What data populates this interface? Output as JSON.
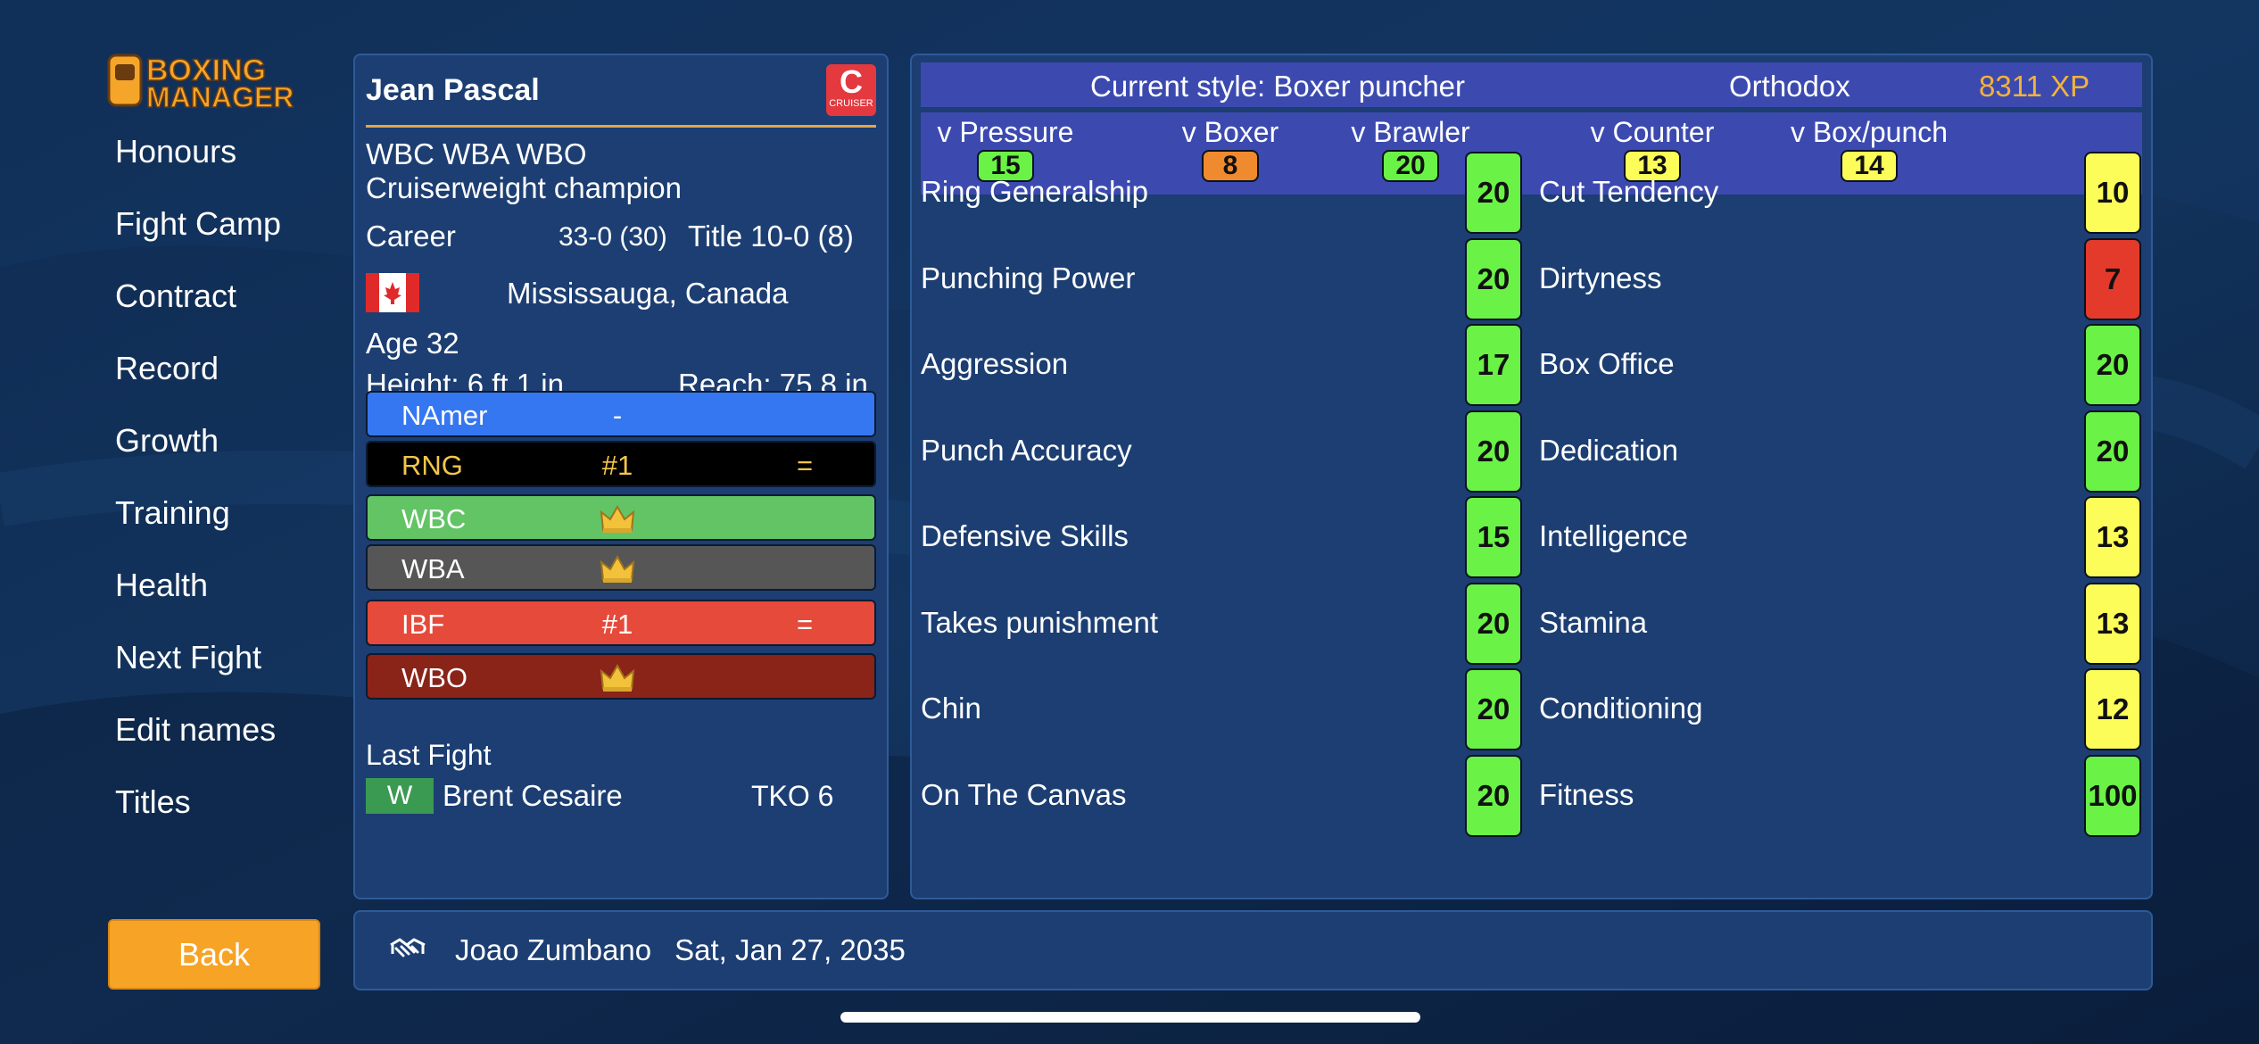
{
  "app": {
    "logo_text_line1": "BOXING",
    "logo_text_line2": "MANAGER"
  },
  "sidebar": {
    "items": [
      {
        "label": "Honours"
      },
      {
        "label": "Fight Camp"
      },
      {
        "label": "Contract"
      },
      {
        "label": "Record"
      },
      {
        "label": "Growth"
      },
      {
        "label": "Training"
      },
      {
        "label": "Health"
      },
      {
        "label": "Next Fight"
      },
      {
        "label": "Edit names"
      },
      {
        "label": "Titles"
      }
    ],
    "back_label": "Back"
  },
  "boxer": {
    "name": "Jean Pascal",
    "weight_badge": "C",
    "weight_badge_sub": "CRUISER",
    "titles_line1": "WBC WBA WBO",
    "titles_line2": "Cruiserweight champion",
    "career_label": "Career",
    "career_record": "33-0 (30)",
    "title_record": "Title 10-0 (8)",
    "hometown": "Mississauga, Canada",
    "age": "Age 32",
    "height": "Height: 6 ft 1 in",
    "reach": "Reach: 75.8 in",
    "flag_icon": "canada-flag-icon"
  },
  "rankings": [
    {
      "org": "NAmer",
      "rank": "-",
      "movement": "",
      "crown": false,
      "color": "#3577f0",
      "text_color": "#ffffff"
    },
    {
      "org": "RNG",
      "rank": "#1",
      "movement": "=",
      "crown": false,
      "color": "#000000",
      "text_color": "#f3c64a"
    },
    {
      "org": "WBC",
      "rank": "",
      "movement": "",
      "crown": true,
      "color": "#62c465",
      "text_color": "#ffffff"
    },
    {
      "org": "WBA",
      "rank": "",
      "movement": "",
      "crown": true,
      "color": "#565656",
      "text_color": "#ffffff"
    },
    {
      "org": "IBF",
      "rank": "#1",
      "movement": "=",
      "crown": false,
      "color": "#e64a3a",
      "text_color": "#ffffff"
    },
    {
      "org": "WBO",
      "rank": "",
      "movement": "",
      "crown": true,
      "color": "#8a2318",
      "text_color": "#ffffff"
    }
  ],
  "last_fight": {
    "label": "Last Fight",
    "result": "W",
    "opponent": "Brent Cesaire",
    "method": "TKO 6"
  },
  "style": {
    "current": "Current style: Boxer puncher",
    "stance": "Orthodox",
    "xp": "8311 XP",
    "xp_color": "#f3b23a"
  },
  "matchups": [
    {
      "label": "v Pressure",
      "value": "15",
      "color": "green"
    },
    {
      "label": "v Boxer",
      "value": "8",
      "color": "orange"
    },
    {
      "label": "v Brawler",
      "value": "20",
      "color": "green"
    },
    {
      "label": "v Counter",
      "value": "13",
      "color": "yellow"
    },
    {
      "label": "v Box/punch",
      "value": "14",
      "color": "yellow"
    }
  ],
  "attributes_left": [
    {
      "label": "Ring Generalship",
      "value": "20",
      "color": "green"
    },
    {
      "label": "Punching Power",
      "value": "20",
      "color": "green"
    },
    {
      "label": "Aggression",
      "value": "17",
      "color": "green"
    },
    {
      "label": "Punch Accuracy",
      "value": "20",
      "color": "green"
    },
    {
      "label": "Defensive Skills",
      "value": "15",
      "color": "green"
    },
    {
      "label": "Takes punishment",
      "value": "20",
      "color": "green"
    },
    {
      "label": "Chin",
      "value": "20",
      "color": "green"
    },
    {
      "label": "On The Canvas",
      "value": "20",
      "color": "green"
    }
  ],
  "attributes_right": [
    {
      "label": "Cut Tendency",
      "value": "10",
      "color": "yellow"
    },
    {
      "label": "Dirtyness",
      "value": "7",
      "color": "red"
    },
    {
      "label": "Box Office",
      "value": "20",
      "color": "green"
    },
    {
      "label": "Dedication",
      "value": "20",
      "color": "green"
    },
    {
      "label": "Intelligence",
      "value": "13",
      "color": "yellow"
    },
    {
      "label": "Stamina",
      "value": "13",
      "color": "yellow"
    },
    {
      "label": "Conditioning",
      "value": "12",
      "color": "yellow"
    },
    {
      "label": "Fitness",
      "value": "100",
      "color": "green"
    }
  ],
  "next_fight": {
    "icon": "handshake-icon",
    "opponent": "Joao Zumbano",
    "date": "Sat, Jan 27, 2035"
  }
}
